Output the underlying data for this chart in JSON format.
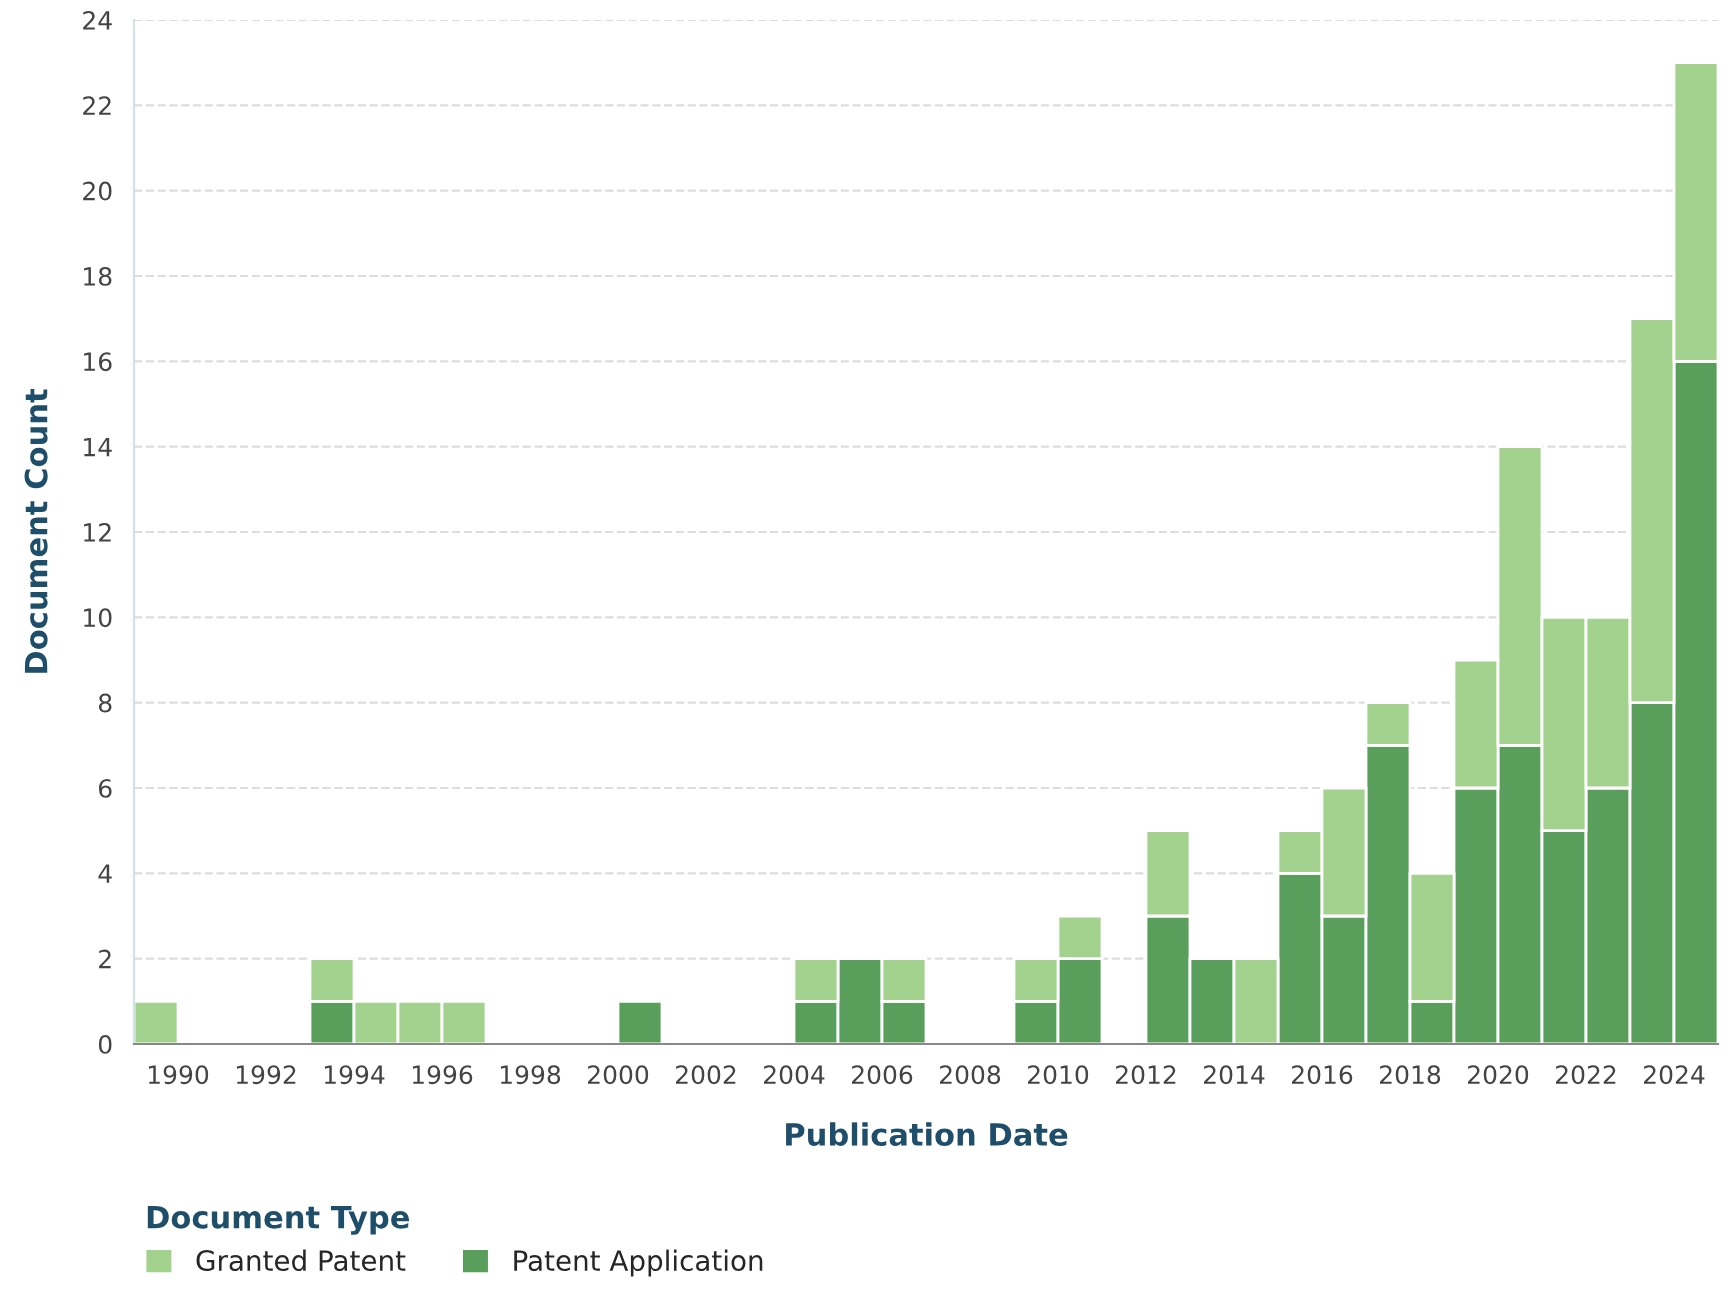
{
  "chart_data": {
    "type": "bar",
    "stacked": true,
    "xlabel": "Publication Date",
    "ylabel": "Document Count",
    "legend_title": "Document Type",
    "legend": "bottom left",
    "x": [
      1989.5,
      1993.5,
      1994.5,
      1995.5,
      1996.5,
      2000.5,
      2004.5,
      2005.5,
      2006.5,
      2009.5,
      2010.5,
      2012.5,
      2013.5,
      2014.5,
      2015.5,
      2016.5,
      2017.5,
      2018.5,
      2019.5,
      2020.5,
      2021.5,
      2022.5,
      2023.5,
      2024.5
    ],
    "series": [
      {
        "name": "Patent Application",
        "color": "#5a9e5c",
        "values": [
          null,
          1,
          null,
          null,
          null,
          1,
          1,
          2,
          1,
          1,
          2,
          3,
          2,
          null,
          4,
          3,
          7,
          1,
          6,
          7,
          5,
          6,
          8,
          16
        ]
      },
      {
        "name": "Granted Patent",
        "color": "#a2d28d",
        "values": [
          1,
          1,
          1,
          1,
          1,
          null,
          1,
          null,
          1,
          1,
          1,
          2,
          null,
          2,
          1,
          3,
          1,
          3,
          3,
          7,
          5,
          4,
          9,
          7
        ]
      }
    ],
    "xlim": [
      1989,
      2025
    ],
    "xticks": [
      1990,
      1992,
      1994,
      1996,
      1998,
      2000,
      2002,
      2004,
      2006,
      2008,
      2010,
      2012,
      2014,
      2016,
      2018,
      2020,
      2022,
      2024
    ],
    "ylim": [
      0,
      24
    ],
    "yticks": [
      0,
      2,
      4,
      6,
      8,
      10,
      12,
      14,
      16,
      18,
      20,
      22,
      24
    ],
    "grid": "y"
  }
}
